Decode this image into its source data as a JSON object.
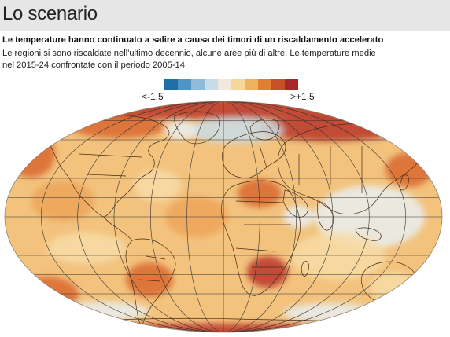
{
  "header": {
    "title": "Lo scenario"
  },
  "article": {
    "headline": "Le temperature hanno continuato a salire a causa dei timori di un riscaldamento accelerato",
    "subtitle": "Le regioni si sono riscaldate nell'ultimo decennio, alcune aree più di altre. Le temperature medie nel 2015-24 confrontate con il periodo 2005-14"
  },
  "legend": {
    "min_label": "<-1,5",
    "max_label": ">+1,5",
    "colors": [
      "#1f6ea5",
      "#4f94c4",
      "#8dbbd9",
      "#c6dde9",
      "#f1e9df",
      "#f6d69a",
      "#f0b15e",
      "#e07f2f",
      "#c7502a",
      "#a8282a"
    ]
  },
  "map": {
    "colors": {
      "warm_base": "#f3c37e",
      "warm_light": "#f7dca6",
      "warm_mid": "#eda55a",
      "hot": "#d9672d",
      "very_hot": "#b8352a",
      "cool_light": "#e9eef0",
      "cool": "#c9dde8",
      "graticule": "#333333",
      "borders": "#4a2c14"
    }
  }
}
